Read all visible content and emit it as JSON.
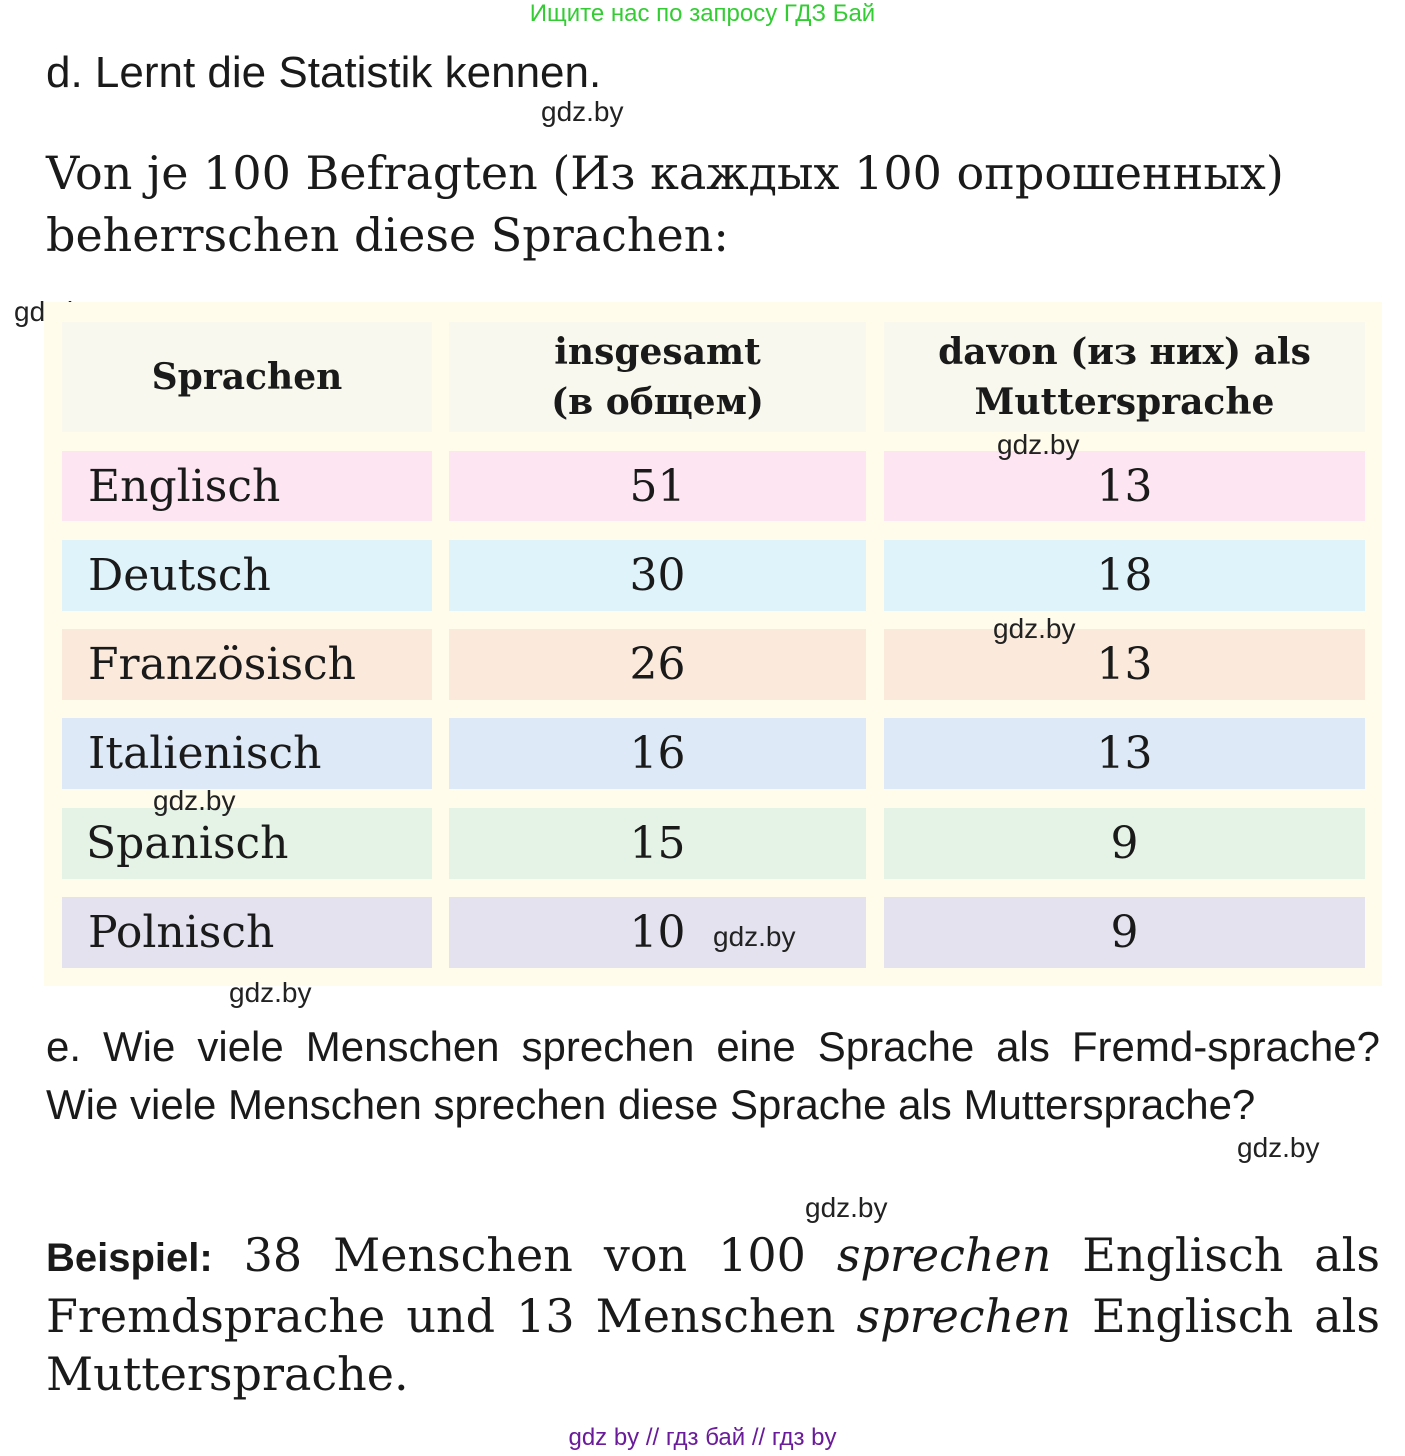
{
  "banner": "Ищите нас по запросу ГДЗ Бай",
  "section_d": {
    "title": "d. Lernt die Statistik kennen."
  },
  "intro": {
    "line1": "Von je 100 Befragten (Из каждых 100 опрошенных)",
    "line2": "beherrschen diese Sprachen:"
  },
  "watermark": "gdz.by",
  "table": {
    "headers": {
      "col1": "Sprachen",
      "col2_line1": "insgesamt",
      "col2_line2": "(в общем)",
      "col3_line1": "davon (из них) als",
      "col3_line2": "Muttersprache"
    },
    "rows": [
      {
        "lang": "Englisch",
        "total": "51",
        "native": "13",
        "color": "#fde6f1"
      },
      {
        "lang": "Deutsch",
        "total": "30",
        "native": "18",
        "color": "#dff3fb"
      },
      {
        "lang": "Französisch",
        "total": "26",
        "native": "13",
        "color": "#fbeadb"
      },
      {
        "lang": "Italienisch",
        "total": "16",
        "native": "13",
        "color": "#dde9f6"
      },
      {
        "lang": "Spanisch",
        "total": "15",
        "native": "9",
        "color": "#e5f3e6"
      },
      {
        "lang": "Polnisch",
        "total": "10",
        "native": "9",
        "color": "#e4e2ee"
      }
    ]
  },
  "section_e": {
    "text": "e. Wie viele Menschen sprechen eine Sprache als Fremd-sprache? Wie viele Menschen sprechen diese Sprache als Muttersprache?"
  },
  "beispiel": {
    "label": "Beispiel:",
    "part1": " 38 Menschen von 100 ",
    "verb": "sprechen",
    "part2": " Englisch als Fremdsprache und 13 Menschen ",
    "part3": " Englisch als Muttersprache."
  },
  "footer": "gdz by  //  гдз бай  //  гдз by"
}
